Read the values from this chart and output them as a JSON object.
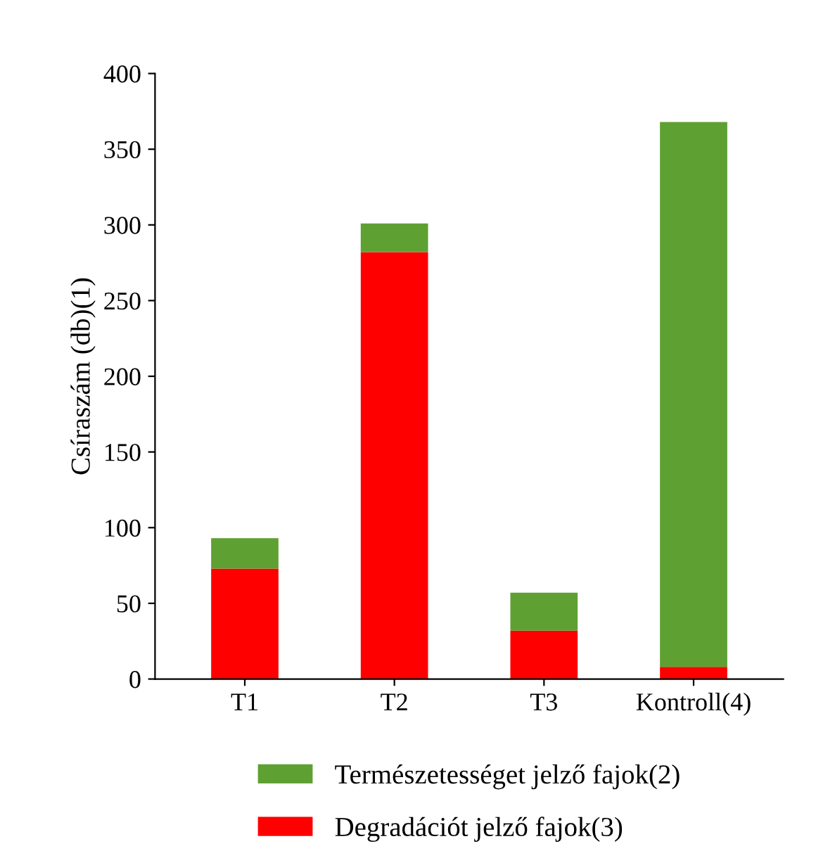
{
  "chart_data": {
    "type": "bar",
    "stacked": true,
    "ylabel": "Csíraszám (db)(1)",
    "categories": [
      "T1",
      "T2",
      "T3",
      "Kontroll(4)"
    ],
    "series": [
      {
        "name": "Degradációt jelző fajok(3)",
        "color": "#ff0000",
        "values": [
          73,
          282,
          32,
          8
        ]
      },
      {
        "name": "Természetességet jelző fajok(2)",
        "color": "#5fa032",
        "values": [
          20,
          19,
          25,
          360
        ]
      }
    ],
    "ylim": [
      0,
      400
    ],
    "yticks": [
      0,
      50,
      100,
      150,
      200,
      250,
      300,
      350,
      400
    ],
    "grid": false,
    "legend": "bottom"
  }
}
